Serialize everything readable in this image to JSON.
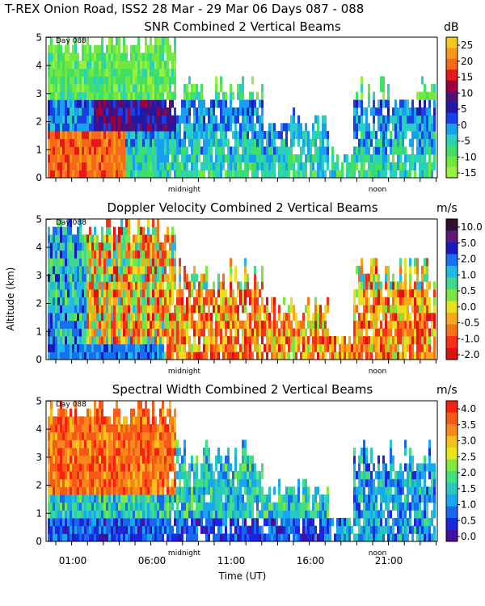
{
  "figure_title": "T-REX Onion Road, ISS2  28 Mar - 29 Mar 06 Days 087 - 088",
  "x_axis_label": "Time (UT)",
  "y_axis_label": "Altitude (km)",
  "day_label": "Day 088",
  "x_markers": [
    "midnight",
    "noon"
  ],
  "x_tick_labels": [
    "01:00",
    "06:00",
    "11:00",
    "16:00",
    "21:00"
  ],
  "y_tick_labels": [
    "0",
    "1",
    "2",
    "3",
    "4",
    "5"
  ],
  "chart_data": [
    {
      "type": "heatmap",
      "title": "SNR Combined 2 Vertical Beams",
      "colorbar_unit": "dB",
      "colorbar_labels": [
        "25",
        "20",
        "15",
        "10",
        "5",
        "0",
        "-5",
        "-10",
        "-15"
      ],
      "colorbar_colors": [
        "#f8c818",
        "#f89818",
        "#f86818",
        "#e81818",
        "#a00038",
        "#50107a",
        "#2018a8",
        "#1840e8",
        "#18a0f0",
        "#28d0c0",
        "#40e068",
        "#70e840",
        "#98f040"
      ],
      "ylim": [
        0,
        5
      ],
      "xlim": [
        "00:00",
        "24:00"
      ]
    },
    {
      "type": "heatmap",
      "title": "Doppler Velocity Combined 2 Vertical Beams",
      "colorbar_unit": "m/s",
      "colorbar_labels": [
        "10.0",
        "5.0",
        "2.0",
        "1.0",
        "0.5",
        "0.0",
        "-0.5",
        "-1.0",
        "-2.0"
      ],
      "colorbar_colors": [
        "#301030",
        "#601878",
        "#1818c0",
        "#1870f0",
        "#20b8e8",
        "#40d890",
        "#78e840",
        "#e8e020",
        "#f8a818",
        "#f87018",
        "#f83018",
        "#e01010"
      ],
      "ylim": [
        0,
        5
      ],
      "xlim": [
        "00:00",
        "24:00"
      ]
    },
    {
      "type": "heatmap",
      "title": "Spectral Width Combined 2 Vertical Beams",
      "colorbar_unit": "m/s",
      "colorbar_labels": [
        "4.0",
        "3.5",
        "3.0",
        "2.5",
        "2.0",
        "1.5",
        "1.0",
        "0.5",
        "0.0"
      ],
      "colorbar_colors": [
        "#f82010",
        "#f85818",
        "#f88818",
        "#f8c018",
        "#e8e818",
        "#80e840",
        "#40e080",
        "#28c8c0",
        "#18a8f0",
        "#1868f0",
        "#1828e0",
        "#4010a0"
      ],
      "ylim": [
        0,
        5
      ],
      "xlim": [
        "00:00",
        "24:00"
      ]
    }
  ]
}
